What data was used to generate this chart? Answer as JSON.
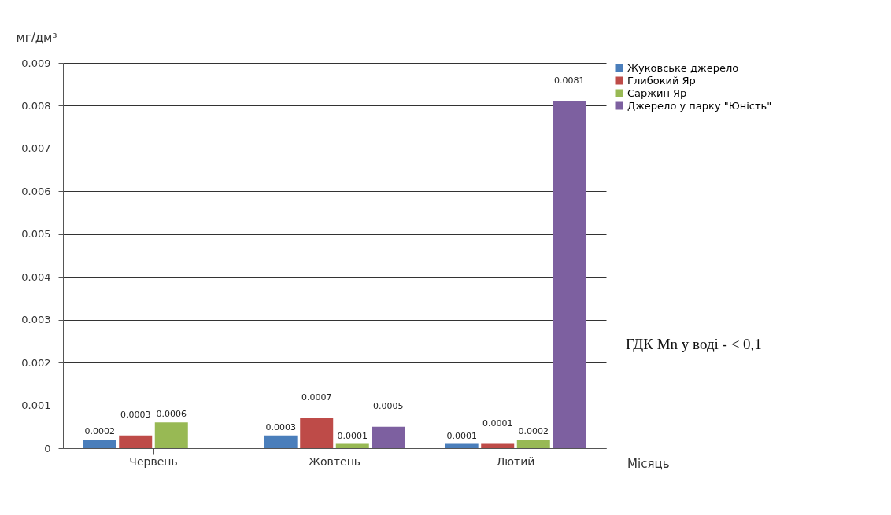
{
  "chart_data": {
    "type": "bar",
    "ylabel": "мг/дм³",
    "xlabel": "Місяць",
    "categories": [
      "Червень",
      "Жовтень",
      "Лютий"
    ],
    "series": [
      {
        "name": "Жуковське джерело",
        "color": "#4a7ebb",
        "values": [
          0.0002,
          0.0003,
          0.0001
        ]
      },
      {
        "name": "Глибокий Яр",
        "color": "#be4b48",
        "values": [
          0.0003,
          0.0007,
          0.0001
        ]
      },
      {
        "name": "Саржин Яр",
        "color": "#98b954",
        "values": [
          0.0006,
          0.0001,
          0.0002
        ]
      },
      {
        "name": "Джерело у парку \"Юність\"",
        "color": "#7d60a0",
        "values": [
          null,
          0.0005,
          0.0081
        ]
      }
    ],
    "ylim": [
      0,
      0.009
    ],
    "yticks": [
      0,
      0.001,
      0.002,
      0.003,
      0.004,
      0.005,
      0.006,
      0.007,
      0.008,
      0.009
    ],
    "grid": "y",
    "legend": "right",
    "data_labels": true,
    "annotations": [
      "ГДК Mn у воді - < 0,1"
    ]
  }
}
